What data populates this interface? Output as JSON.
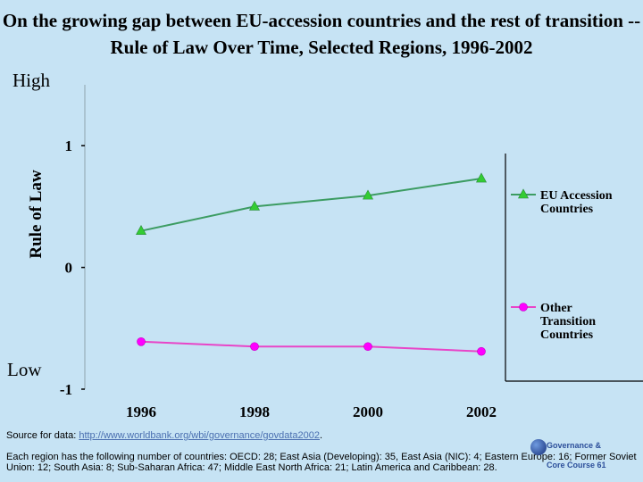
{
  "title": "On the growing gap between EU-accession countries and the rest of transition --Rule of Law Over Time, Selected Regions, 1996-2002",
  "labels": {
    "high": "High",
    "low": "Low"
  },
  "chart_data": {
    "type": "line",
    "title": "On the growing gap between EU-accession countries and the rest of transition --Rule of Law Over Time, Selected Regions, 1996-2002",
    "xlabel": "",
    "ylabel": "Rule of Law",
    "x": [
      "1996",
      "1998",
      "2000",
      "2002"
    ],
    "yticks": [
      "1",
      "0",
      "-1"
    ],
    "ylim": [
      -1,
      1.5
    ],
    "series": [
      {
        "name": "EU Accession Countries",
        "legend_lines": [
          "EU Accession",
          "Countries"
        ],
        "values": [
          0.3,
          0.5,
          0.59,
          0.73
        ],
        "color": "#3c9c62",
        "marker": "triangle",
        "marker_color": "#33cc33"
      },
      {
        "name": "Other Transition Countries",
        "legend_lines": [
          "Other",
          "Transition",
          "Countries"
        ],
        "values": [
          -0.61,
          -0.65,
          -0.65,
          -0.69
        ],
        "color": "#e845c8",
        "marker": "circle",
        "marker_color": "#ff00ff"
      }
    ]
  },
  "source": {
    "prefix": "Source for data: ",
    "link": "http://www.worldbank.org/wbi/governance/govdata2002",
    "suffix": "."
  },
  "note": "Each region has the following number of countries: OECD: 28; East Asia (Developing): 35, East Asia (NIC): 4; Eastern Europe: 16; Former Soviet Union: 12; South Asia: 8; Sub-Saharan Africa: 47; Middle East North Africa: 21; Latin America and Caribbean: 28.",
  "badge": {
    "line1": "Governance &",
    "line2": "Core Course   61"
  }
}
